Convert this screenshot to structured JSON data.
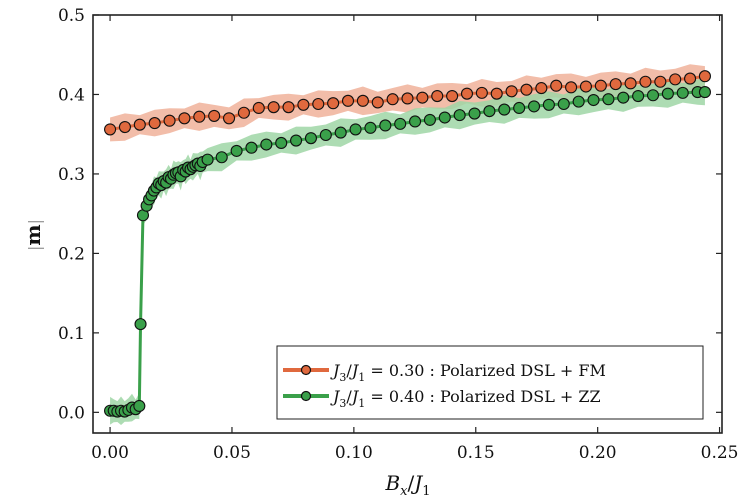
{
  "chart_data": {
    "type": "line",
    "title": "",
    "xlabel": "B_x/J_1",
    "xlabel_parts": {
      "main": "B",
      "sub": "x",
      "sep": "/",
      "main2": "J",
      "sub2": "1"
    },
    "ylabel": "|m|",
    "ylabel_parts": {
      "bar": "|",
      "main": "m"
    },
    "xlim": [
      -0.007,
      0.251
    ],
    "ylim": [
      -0.026,
      0.5
    ],
    "xticks": [
      0.0,
      0.05,
      0.1,
      0.15,
      0.2,
      0.25
    ],
    "xtick_labels": [
      "0.00",
      "0.05",
      "0.10",
      "0.15",
      "0.20",
      "0.25"
    ],
    "yticks": [
      0.0,
      0.1,
      0.2,
      0.3,
      0.4,
      0.5
    ],
    "ytick_labels": [
      "0.0",
      "0.1",
      "0.2",
      "0.3",
      "0.4",
      "0.5"
    ],
    "grid": false,
    "legend_position": "bottom-right",
    "series": [
      {
        "name": "J3/J1 = 0.30 : Polarized DSL + FM",
        "legend": {
          "j": "J",
          "sub3": "3",
          "slash": "/",
          "j2": "J",
          "sub1": "1",
          "rest": " = 0.30 : Polarized DSL + FM"
        },
        "color": "#e0693e",
        "band_color": "#f0b19a",
        "band_halfwidth": 0.015,
        "x": [
          0.0,
          0.0061,
          0.0122,
          0.0183,
          0.0244,
          0.0305,
          0.0366,
          0.0427,
          0.0488,
          0.0549,
          0.061,
          0.0671,
          0.0732,
          0.0793,
          0.0854,
          0.0915,
          0.0976,
          0.1037,
          0.1098,
          0.1159,
          0.122,
          0.1281,
          0.1342,
          0.1403,
          0.1464,
          0.1525,
          0.1586,
          0.1647,
          0.1708,
          0.1769,
          0.183,
          0.1891,
          0.1952,
          0.2013,
          0.2074,
          0.2135,
          0.2196,
          0.2257,
          0.2318,
          0.2379,
          0.244
        ],
        "y": [
          0.356,
          0.359,
          0.362,
          0.364,
          0.367,
          0.37,
          0.372,
          0.373,
          0.37,
          0.377,
          0.383,
          0.384,
          0.384,
          0.387,
          0.388,
          0.389,
          0.392,
          0.392,
          0.39,
          0.394,
          0.395,
          0.396,
          0.398,
          0.398,
          0.401,
          0.402,
          0.401,
          0.404,
          0.406,
          0.408,
          0.411,
          0.409,
          0.41,
          0.411,
          0.413,
          0.414,
          0.416,
          0.416,
          0.419,
          0.42,
          0.423
        ]
      },
      {
        "name": "J3/J1 = 0.40 : Polarized DSL + ZZ",
        "legend": {
          "j": "J",
          "sub3": "3",
          "slash": "/",
          "j2": "J",
          "sub1": "1",
          "rest": " = 0.40 : Polarized DSL + ZZ"
        },
        "color": "#3aa04a",
        "band_color": "#9fd6a6",
        "band_halfwidth": 0.015,
        "x": [
          0.0,
          0.0015,
          0.003,
          0.0045,
          0.006,
          0.0075,
          0.009,
          0.0105,
          0.012,
          0.0125,
          0.0135,
          0.015,
          0.016,
          0.017,
          0.018,
          0.019,
          0.02,
          0.021,
          0.022,
          0.023,
          0.024,
          0.025,
          0.026,
          0.027,
          0.028,
          0.029,
          0.03,
          0.031,
          0.032,
          0.033,
          0.034,
          0.035,
          0.036,
          0.037,
          0.038,
          0.04,
          0.0458,
          0.0519,
          0.058,
          0.0641,
          0.0702,
          0.0763,
          0.0824,
          0.0885,
          0.0946,
          0.1007,
          0.1068,
          0.1129,
          0.119,
          0.1251,
          0.1312,
          0.1373,
          0.1434,
          0.1495,
          0.1556,
          0.1617,
          0.1678,
          0.1739,
          0.18,
          0.1861,
          0.1922,
          0.1983,
          0.2044,
          0.2105,
          0.2166,
          0.2227,
          0.2288,
          0.2349,
          0.241,
          0.244
        ],
        "y": [
          0.002,
          0.002,
          0.001,
          0.002,
          0.001,
          0.003,
          0.006,
          0.004,
          0.008,
          0.111,
          0.248,
          0.26,
          0.268,
          0.273,
          0.279,
          0.283,
          0.288,
          0.286,
          0.291,
          0.289,
          0.296,
          0.294,
          0.299,
          0.301,
          0.302,
          0.297,
          0.305,
          0.303,
          0.308,
          0.306,
          0.309,
          0.311,
          0.313,
          0.31,
          0.315,
          0.318,
          0.321,
          0.329,
          0.333,
          0.337,
          0.339,
          0.342,
          0.345,
          0.349,
          0.352,
          0.356,
          0.358,
          0.361,
          0.363,
          0.366,
          0.368,
          0.371,
          0.374,
          0.376,
          0.379,
          0.381,
          0.383,
          0.385,
          0.387,
          0.388,
          0.391,
          0.393,
          0.394,
          0.396,
          0.398,
          0.399,
          0.401,
          0.402,
          0.403,
          0.403
        ]
      }
    ]
  }
}
